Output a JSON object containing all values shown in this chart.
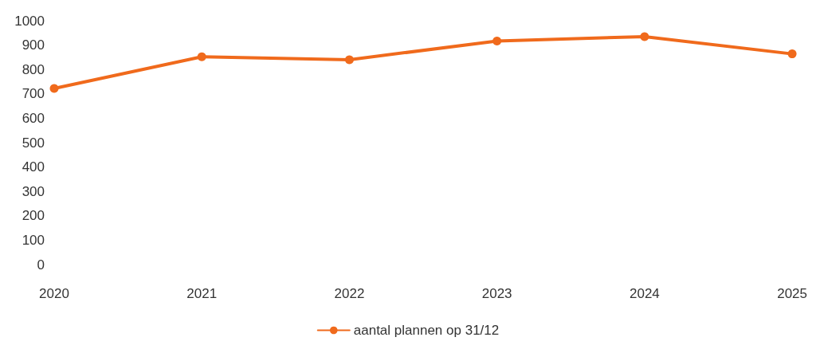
{
  "chart_data": {
    "type": "line",
    "categories": [
      "2020",
      "2021",
      "2022",
      "2023",
      "2024",
      "2025"
    ],
    "series": [
      {
        "name": "aantal plannen op 31/12",
        "color": "#f06a1c",
        "values": [
          722,
          852,
          840,
          917,
          935,
          864
        ]
      }
    ],
    "ylim": [
      0,
      1000
    ],
    "yticks": [
      0,
      100,
      200,
      300,
      400,
      500,
      600,
      700,
      800,
      900,
      1000
    ],
    "grid": false,
    "legend": "bottom",
    "marker": "circle",
    "line_style": "solid"
  }
}
